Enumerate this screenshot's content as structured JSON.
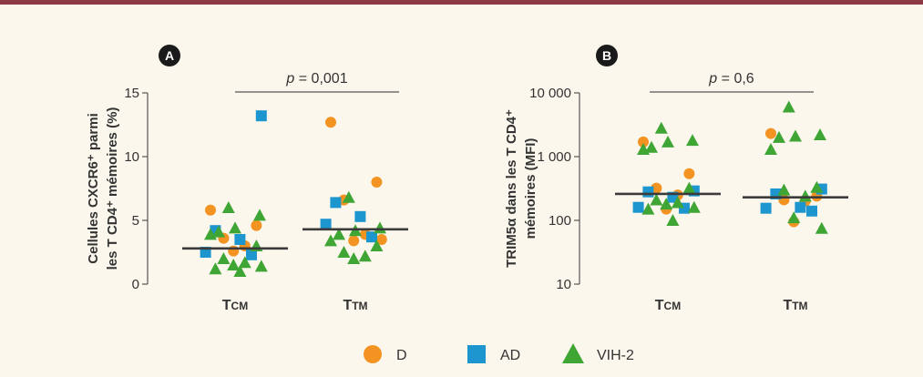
{
  "colors": {
    "D": "#f39322",
    "AD": "#1d95cf",
    "VIH-2": "#3fa535",
    "median": "#3b3b3b",
    "axis": "#555555",
    "frame": "#8e3a46"
  },
  "legend": [
    {
      "key": "D",
      "label": "D",
      "shape": "circle"
    },
    {
      "key": "AD",
      "label": "AD",
      "shape": "square"
    },
    {
      "key": "VIH-2",
      "label": "VIH-2",
      "shape": "triangle"
    }
  ],
  "chart_data": [
    {
      "type": "scatter",
      "panel": "A",
      "ylabel_lines": [
        "Cellules CXCR6⁺ parmi",
        "les T CD4⁺ mémoires (%)"
      ],
      "yscale": "linear",
      "ylim": [
        0,
        15
      ],
      "yticks": [
        0,
        5,
        10,
        15
      ],
      "yticklabels": [
        "0",
        "5",
        "10",
        "15"
      ],
      "categories": [
        {
          "main": "T",
          "sub": "CM"
        },
        {
          "main": "T",
          "sub": "TM"
        }
      ],
      "pvalue_prefix": "p",
      "pvalue_text": " = 0,001",
      "medians": [
        2.8,
        4.3
      ],
      "series": [
        {
          "name": "D",
          "points": [
            [
              0,
              5.8
            ],
            [
              0,
              4.6
            ],
            [
              0,
              3.6
            ],
            [
              0,
              3.0
            ],
            [
              0,
              2.6
            ],
            [
              1,
              12.7
            ],
            [
              1,
              8.0
            ],
            [
              1,
              6.6
            ],
            [
              1,
              3.9
            ],
            [
              1,
              3.4
            ],
            [
              1,
              3.5
            ]
          ]
        },
        {
          "name": "AD",
          "points": [
            [
              0,
              13.2
            ],
            [
              0,
              4.2
            ],
            [
              0,
              3.5
            ],
            [
              0,
              2.5
            ],
            [
              0,
              2.3
            ],
            [
              1,
              6.4
            ],
            [
              1,
              5.3
            ],
            [
              1,
              4.7
            ],
            [
              1,
              3.7
            ]
          ]
        },
        {
          "name": "VIH-2",
          "points": [
            [
              0,
              6.0
            ],
            [
              0,
              5.4
            ],
            [
              0,
              4.4
            ],
            [
              0,
              4.1
            ],
            [
              0,
              3.9
            ],
            [
              0,
              3.0
            ],
            [
              0,
              2.0
            ],
            [
              0,
              1.7
            ],
            [
              0,
              1.5
            ],
            [
              0,
              1.4
            ],
            [
              0,
              1.2
            ],
            [
              0,
              1.0
            ],
            [
              1,
              6.8
            ],
            [
              1,
              4.4
            ],
            [
              1,
              4.2
            ],
            [
              1,
              3.9
            ],
            [
              1,
              3.4
            ],
            [
              1,
              3.0
            ],
            [
              1,
              2.5
            ],
            [
              1,
              2.2
            ],
            [
              1,
              2.0
            ]
          ]
        }
      ]
    },
    {
      "type": "scatter",
      "panel": "B",
      "ylabel_lines": [
        "TRIM5α dans les T CD4⁺",
        "mémoires (MFI)"
      ],
      "yscale": "log",
      "ylim": [
        10,
        10000
      ],
      "yticks": [
        10,
        100,
        1000,
        10000
      ],
      "yticklabels": [
        "10",
        "100",
        "1 000",
        "10 000"
      ],
      "categories": [
        {
          "main": "T",
          "sub": "CM"
        },
        {
          "main": "T",
          "sub": "TM"
        }
      ],
      "pvalue_prefix": "p",
      "pvalue_text": " = 0,6",
      "medians": [
        260,
        230
      ],
      "series": [
        {
          "name": "D",
          "points": [
            [
              0,
              1700
            ],
            [
              0,
              540
            ],
            [
              0,
              320
            ],
            [
              0,
              250
            ],
            [
              0,
              150
            ],
            [
              1,
              2300
            ],
            [
              1,
              240
            ],
            [
              1,
              210
            ],
            [
              1,
              200
            ],
            [
              1,
              95
            ]
          ]
        },
        {
          "name": "AD",
          "points": [
            [
              0,
              290
            ],
            [
              0,
              280
            ],
            [
              0,
              230
            ],
            [
              0,
              160
            ],
            [
              0,
              155
            ],
            [
              1,
              310
            ],
            [
              1,
              260
            ],
            [
              1,
              160
            ],
            [
              1,
              155
            ],
            [
              1,
              140
            ]
          ]
        },
        {
          "name": "VIH-2",
          "points": [
            [
              0,
              2800
            ],
            [
              0,
              1800
            ],
            [
              0,
              1700
            ],
            [
              0,
              1400
            ],
            [
              0,
              1300
            ],
            [
              0,
              320
            ],
            [
              0,
              210
            ],
            [
              0,
              190
            ],
            [
              0,
              180
            ],
            [
              0,
              160
            ],
            [
              0,
              150
            ],
            [
              0,
              100
            ],
            [
              1,
              6000
            ],
            [
              1,
              2200
            ],
            [
              1,
              2100
            ],
            [
              1,
              2000
            ],
            [
              1,
              1300
            ],
            [
              1,
              330
            ],
            [
              1,
              300
            ],
            [
              1,
              240
            ],
            [
              1,
              110
            ],
            [
              1,
              75
            ]
          ]
        }
      ]
    }
  ]
}
